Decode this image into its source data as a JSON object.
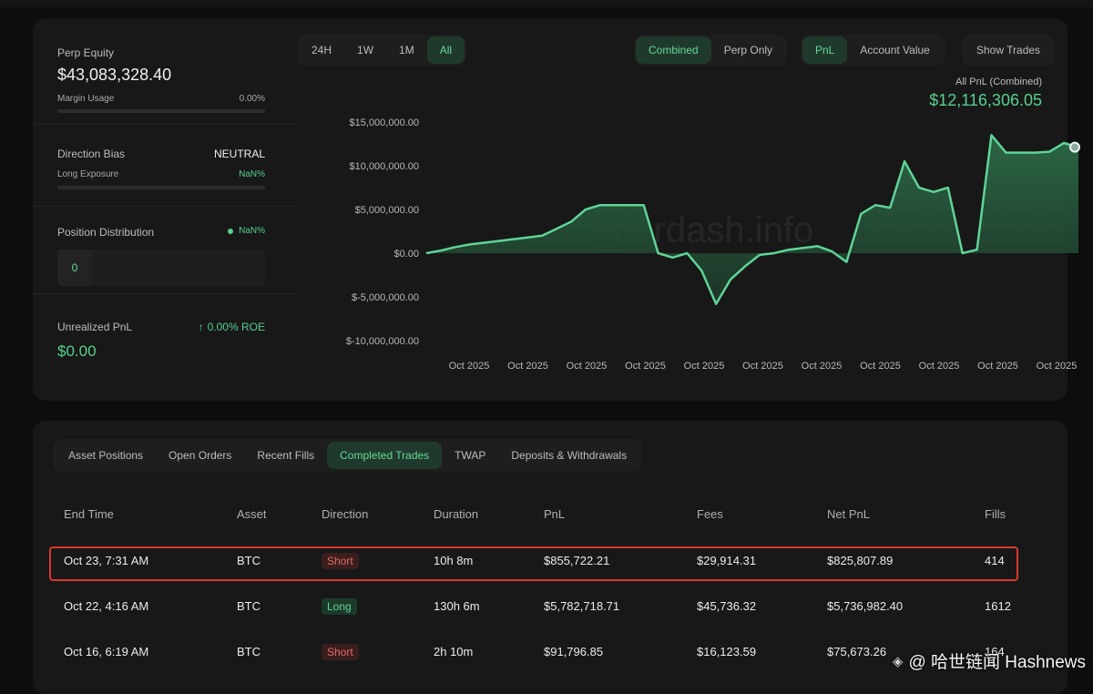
{
  "stats": {
    "perp_equity_label": "Perp Equity",
    "perp_equity_value": "$43,083,328.40",
    "margin_usage_label": "Margin Usage",
    "margin_usage_value": "0.00%",
    "margin_usage_fraction": 0,
    "direction_bias_label": "Direction Bias",
    "direction_bias_value": "NEUTRAL",
    "long_exposure_label": "Long Exposure",
    "long_exposure_value": "NaN%",
    "position_distribution_label": "Position Distribution",
    "position_distribution_value": "NaN%",
    "position_distribution_count": "0",
    "unrealized_pnl_label": "Unrealized PnL",
    "unrealized_pnl_value": "$0.00",
    "roe_value": "0.00% ROE"
  },
  "range_tabs": [
    "24H",
    "1W",
    "1M",
    "All"
  ],
  "range_active": 3,
  "mode_tabs": [
    "Combined",
    "Perp Only"
  ],
  "mode_active": 0,
  "metric_tabs": [
    "PnL",
    "Account Value"
  ],
  "metric_active": 0,
  "show_trades_label": "Show Trades",
  "chart_header": {
    "label": "All PnL (Combined)",
    "value": "$12,116,306.05"
  },
  "watermark_chart": "hyperdash.info",
  "chart_data": {
    "type": "area",
    "title": "All PnL (Combined)",
    "ylim": [
      -10000000,
      15000000
    ],
    "y_ticks": [
      15000000,
      10000000,
      5000000,
      0,
      -5000000,
      -10000000
    ],
    "y_tick_labels": [
      "$15,000,000.00",
      "$10,000,000.00",
      "$5,000,000.00",
      "$0.00",
      "$-5,000,000.00",
      "$-10,000,000.00"
    ],
    "x_tick_labels": [
      "Oct 2025",
      "Oct 2025",
      "Oct 2025",
      "Oct 2025",
      "Oct 2025",
      "Oct 2025",
      "Oct 2025",
      "Oct 2025",
      "Oct 2025",
      "Oct 2025",
      "Oct 2025"
    ],
    "series": [
      {
        "values": [
          0,
          300000,
          700000,
          1000000,
          1200000,
          1400000,
          1600000,
          1800000,
          2000000,
          2800000,
          3600000,
          5000000,
          5500000,
          5500000,
          5500000,
          5500000,
          0,
          -500000,
          0,
          -2000000,
          -5800000,
          -3000000,
          -1500000,
          -200000,
          0,
          400000,
          600000,
          800000,
          200000,
          -1000000,
          4500000,
          5500000,
          5200000,
          10500000,
          7500000,
          7000000,
          7500000,
          0,
          400000,
          13500000,
          11500000,
          11500000,
          11500000,
          11600000,
          12600000,
          12116306
        ]
      }
    ],
    "line_color": "#5fd497",
    "fill_color": "#2a5a40"
  },
  "tabs": [
    "Asset Positions",
    "Open Orders",
    "Recent Fills",
    "Completed Trades",
    "TWAP",
    "Deposits & Withdrawals"
  ],
  "tab_active": 3,
  "table": {
    "headers": [
      "End Time",
      "Asset",
      "Direction",
      "Duration",
      "PnL",
      "Fees",
      "Net PnL",
      "Fills"
    ],
    "rows": [
      {
        "end_time": "Oct 23, 7:31 AM",
        "asset": "BTC",
        "direction": "Short",
        "duration": "10h 8m",
        "pnl": "$855,722.21",
        "fees": "$29,914.31",
        "net_pnl": "$825,807.89",
        "fills": "414"
      },
      {
        "end_time": "Oct 22, 4:16 AM",
        "asset": "BTC",
        "direction": "Long",
        "duration": "130h 6m",
        "pnl": "$5,782,718.71",
        "fees": "$45,736.32",
        "net_pnl": "$5,736,982.40",
        "fills": "1612"
      },
      {
        "end_time": "Oct 16, 6:19 AM",
        "asset": "BTC",
        "direction": "Short",
        "duration": "2h 10m",
        "pnl": "$91,796.85",
        "fees": "$16,123.59",
        "net_pnl": "$75,673.26",
        "fills": "164"
      }
    ]
  },
  "watermark": "@ 哈世链闻 Hashnews"
}
